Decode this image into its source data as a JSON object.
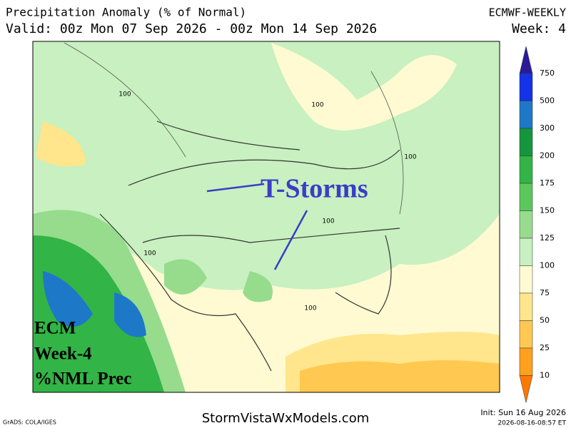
{
  "header": {
    "title": "Precipitation Anomaly (% of Normal)",
    "valid": "Valid: 00z Mon 07 Sep 2026 - 00z Mon 14 Sep 2026",
    "model": "ECMWF-WEEKLY",
    "week": "Week: 4"
  },
  "map": {
    "annotation": "T-Storms",
    "overlay": [
      "ECM",
      "Week-4",
      "%NML Prec"
    ],
    "contour_labels": [
      "100",
      "100",
      "100",
      "100",
      "100",
      "100"
    ]
  },
  "colorbar": {
    "levels": [
      750,
      500,
      300,
      200,
      175,
      150,
      125,
      100,
      75,
      50,
      25,
      10
    ],
    "colors": [
      "#2a1a9a",
      "#1432e6",
      "#1e78c8",
      "#14963c",
      "#32b446",
      "#5ac85a",
      "#96dc8c",
      "#c8f0c0",
      "#fffad2",
      "#ffe68c",
      "#ffc850",
      "#ffa01e",
      "#ff7800"
    ]
  },
  "footer": {
    "site": "StormVistaWxModels.com",
    "credit": "GrADS: COLA/IGES",
    "init": "Init: Sun 16 Aug 2026",
    "stamp": "2026-08-16-08:57 ET"
  }
}
